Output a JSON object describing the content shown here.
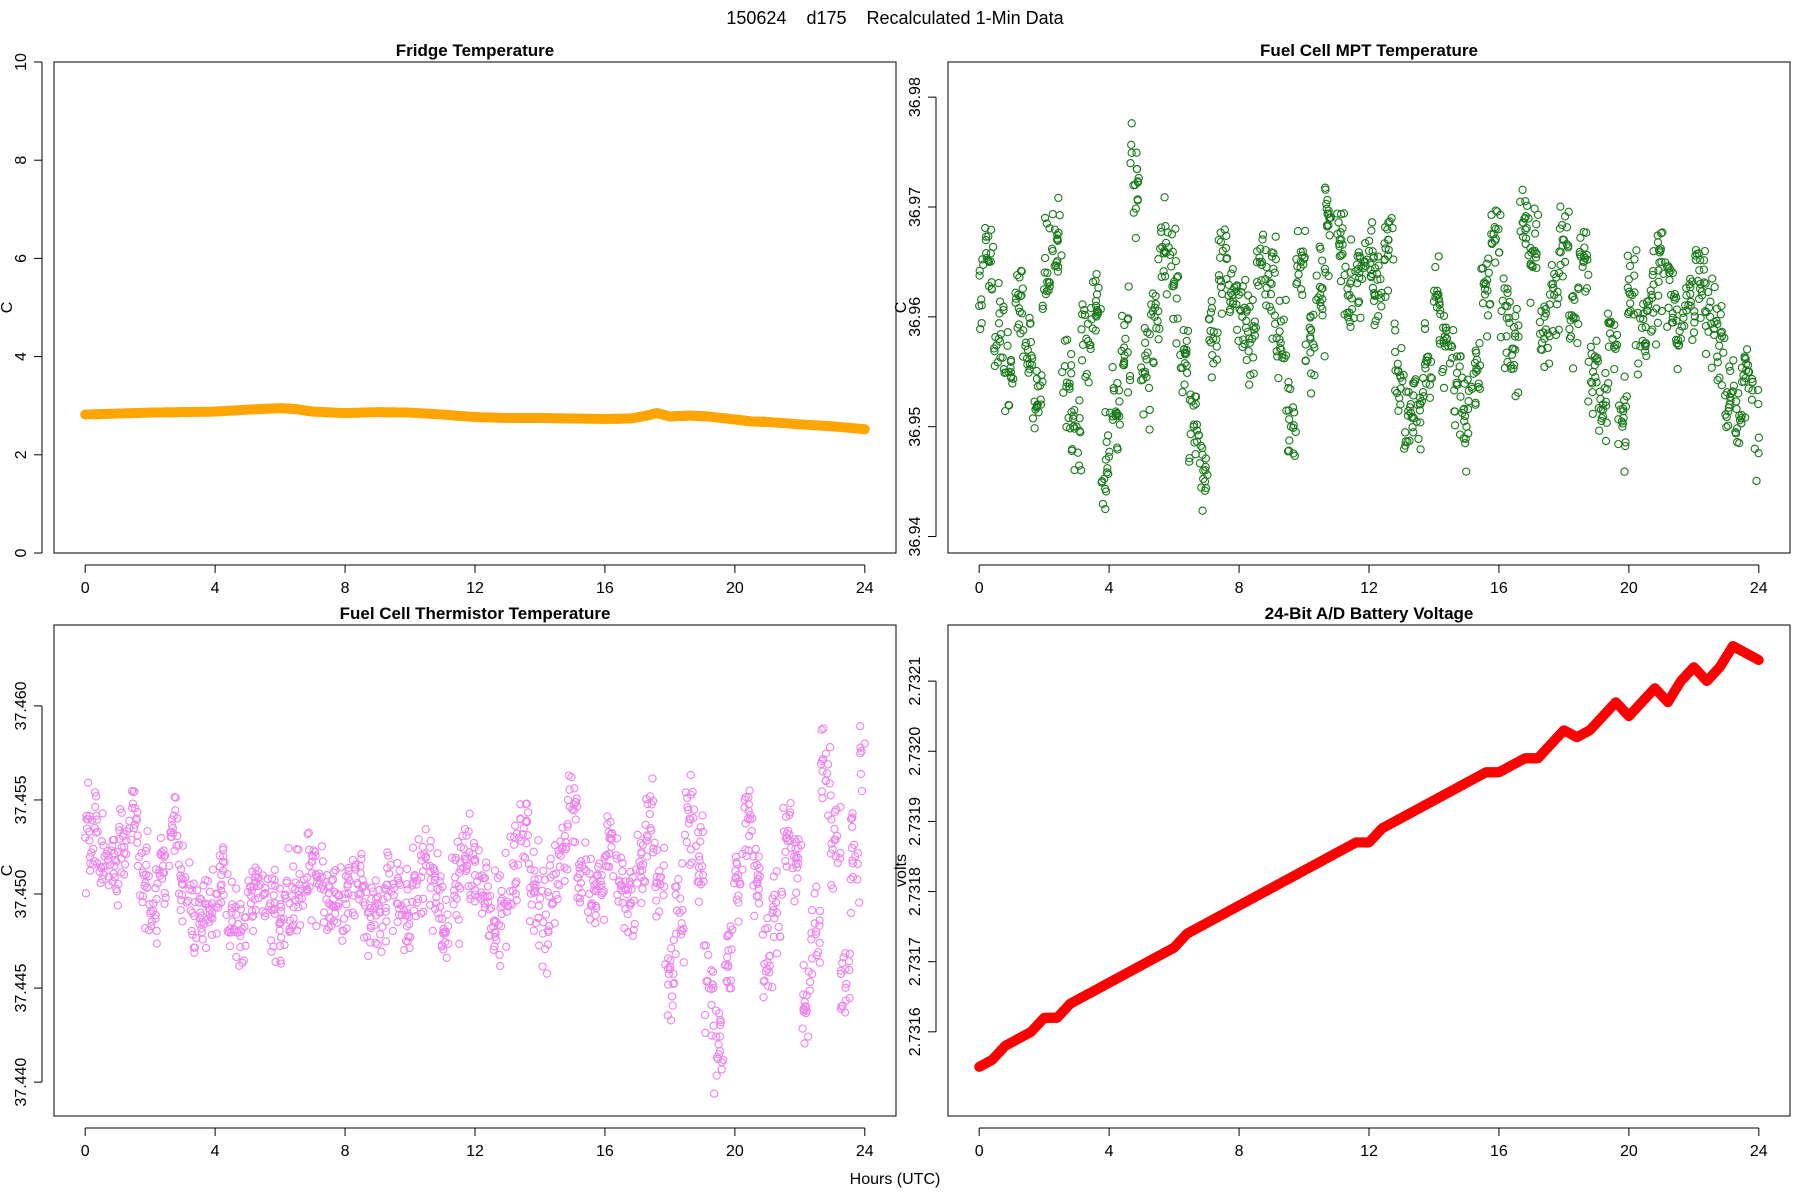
{
  "figure": {
    "title": "150624    d175    Recalculated 1-Min Data",
    "xlabel": "Hours (UTC)"
  },
  "chart_data": [
    {
      "id": "fridge",
      "type": "scatter",
      "title": "Fridge Temperature",
      "xlabel": "",
      "ylabel": "C",
      "xlim": [
        0,
        24
      ],
      "ylim": [
        0,
        10
      ],
      "xticks": [
        0,
        4,
        8,
        12,
        16,
        20,
        24
      ],
      "yticks": [
        0,
        2,
        4,
        6,
        8,
        10
      ],
      "tick_decimals": 0,
      "marker": "dense-line",
      "color": "#FFA500",
      "series": [
        {
          "x": [
            0,
            1,
            2,
            3,
            4,
            5,
            6,
            6.5,
            7,
            8,
            9,
            10,
            11,
            12,
            13,
            14,
            15,
            16,
            16.8,
            17.3,
            17.6,
            18,
            18.6,
            19.2,
            20,
            20.5,
            21,
            22,
            23,
            24
          ],
          "values": [
            2.82,
            2.84,
            2.86,
            2.87,
            2.88,
            2.92,
            2.95,
            2.93,
            2.88,
            2.85,
            2.87,
            2.86,
            2.82,
            2.77,
            2.75,
            2.75,
            2.74,
            2.73,
            2.74,
            2.8,
            2.85,
            2.78,
            2.8,
            2.78,
            2.72,
            2.68,
            2.67,
            2.62,
            2.58,
            2.52
          ]
        }
      ]
    },
    {
      "id": "mpt",
      "type": "scatter",
      "title": "Fuel Cell MPT Temperature",
      "xlabel": "",
      "ylabel": "C",
      "xlim": [
        0,
        24
      ],
      "ylim": [
        36.9385,
        36.9832
      ],
      "xticks": [
        0,
        4,
        8,
        12,
        16,
        20,
        24
      ],
      "yticks": [
        36.94,
        36.95,
        36.96,
        36.97,
        36.98
      ],
      "tick_decimals": 2,
      "marker": "open-circle",
      "color": "#1A7A1A",
      "series": [
        {
          "x": [
            0,
            0.3,
            0.6,
            0.9,
            1.2,
            1.5,
            1.8,
            2.1,
            2.4,
            2.7,
            3,
            3.3,
            3.6,
            3.9,
            4.2,
            4.5,
            4.8,
            5.1,
            5.4,
            5.7,
            6,
            6.3,
            6.6,
            6.9,
            7.2,
            7.5,
            7.8,
            8.1,
            8.4,
            8.7,
            9,
            9.3,
            9.6,
            9.9,
            10.2,
            10.5,
            10.8,
            11.1,
            11.4,
            11.7,
            12,
            12.3,
            12.6,
            12.9,
            13.2,
            13.5,
            13.8,
            14.1,
            14.4,
            14.7,
            15,
            15.3,
            15.6,
            15.9,
            16.2,
            16.5,
            16.8,
            17.1,
            17.4,
            17.7,
            18,
            18.3,
            18.6,
            18.9,
            19.2,
            19.5,
            19.8,
            20.1,
            20.4,
            20.7,
            21,
            21.3,
            21.6,
            21.9,
            22.2,
            22.5,
            22.8,
            23.1,
            23.4,
            23.7,
            24
          ],
          "values": [
            36.961,
            36.965,
            36.958,
            36.955,
            36.962,
            36.957,
            36.952,
            36.964,
            36.967,
            36.954,
            36.95,
            36.958,
            36.961,
            36.947,
            36.951,
            36.958,
            36.972,
            36.955,
            36.96,
            36.966,
            36.963,
            36.957,
            36.95,
            36.946,
            36.958,
            36.966,
            36.962,
            36.96,
            36.958,
            36.965,
            36.963,
            36.957,
            36.95,
            36.965,
            36.958,
            36.962,
            36.969,
            36.967,
            36.962,
            36.964,
            36.966,
            36.962,
            36.967,
            36.955,
            36.951,
            36.952,
            36.956,
            36.962,
            36.958,
            36.954,
            36.95,
            36.955,
            36.963,
            36.968,
            36.961,
            36.957,
            36.969,
            36.966,
            36.958,
            36.962,
            36.967,
            36.96,
            36.965,
            36.955,
            36.952,
            36.958,
            36.95,
            36.962,
            36.959,
            36.962,
            36.965,
            36.962,
            36.958,
            36.961,
            36.963,
            36.96,
            36.958,
            36.952,
            36.951,
            36.955,
            36.949
          ]
        }
      ]
    },
    {
      "id": "thermistor",
      "type": "scatter",
      "title": "Fuel Cell Thermistor Temperature",
      "xlabel": "",
      "ylabel": "C",
      "xlim": [
        0,
        24
      ],
      "ylim": [
        37.4382,
        37.4643
      ],
      "xticks": [
        0,
        4,
        8,
        12,
        16,
        20,
        24
      ],
      "yticks": [
        37.44,
        37.445,
        37.45,
        37.455,
        37.46
      ],
      "tick_decimals": 3,
      "marker": "open-circle",
      "color": "#EE82EE",
      "series": [
        {
          "x": [
            0,
            0.3,
            0.6,
            0.9,
            1.2,
            1.5,
            1.8,
            2.1,
            2.4,
            2.7,
            3,
            3.3,
            3.6,
            3.9,
            4.2,
            4.5,
            4.8,
            5.1,
            5.4,
            5.7,
            6,
            6.3,
            6.6,
            6.9,
            7.2,
            7.5,
            7.8,
            8.1,
            8.4,
            8.7,
            9,
            9.3,
            9.6,
            9.9,
            10.2,
            10.5,
            10.8,
            11.1,
            11.4,
            11.7,
            12,
            12.3,
            12.6,
            12.9,
            13.2,
            13.5,
            13.8,
            14.1,
            14.4,
            14.7,
            15,
            15.3,
            15.6,
            15.9,
            16.2,
            16.5,
            16.8,
            17.1,
            17.4,
            17.7,
            18,
            18.3,
            18.6,
            18.9,
            19.2,
            19.5,
            19.8,
            20.1,
            20.4,
            20.7,
            21,
            21.3,
            21.6,
            21.9,
            22.2,
            22.5,
            22.8,
            23.1,
            23.4,
            23.7,
            24
          ],
          "values": [
            37.453,
            37.4535,
            37.452,
            37.4515,
            37.4525,
            37.4535,
            37.451,
            37.4495,
            37.4515,
            37.4535,
            37.4505,
            37.449,
            37.4485,
            37.4495,
            37.4505,
            37.449,
            37.448,
            37.4495,
            37.4505,
            37.4495,
            37.4485,
            37.4495,
            37.4505,
            37.4515,
            37.4505,
            37.4495,
            37.4495,
            37.45,
            37.4505,
            37.449,
            37.4495,
            37.4505,
            37.4495,
            37.449,
            37.4505,
            37.4515,
            37.4495,
            37.448,
            37.4505,
            37.452,
            37.451,
            37.4495,
            37.4485,
            37.4495,
            37.4515,
            37.4535,
            37.4505,
            37.4485,
            37.4495,
            37.4525,
            37.4545,
            37.4515,
            37.4495,
            37.451,
            37.4525,
            37.4505,
            37.4495,
            37.4515,
            37.4535,
            37.4505,
            37.446,
            37.449,
            37.454,
            37.452,
            37.445,
            37.442,
            37.447,
            37.451,
            37.454,
            37.451,
            37.446,
            37.449,
            37.453,
            37.452,
            37.444,
            37.448,
            37.456,
            37.452,
            37.446,
            37.452,
            37.458
          ]
        }
      ]
    },
    {
      "id": "battery",
      "type": "scatter",
      "title": "24-Bit A/D Battery Voltage",
      "xlabel": "",
      "ylabel": "volts",
      "xlim": [
        0,
        24
      ],
      "ylim": [
        2.73148,
        2.73218
      ],
      "xticks": [
        0,
        4,
        8,
        12,
        16,
        20,
        24
      ],
      "yticks": [
        2.7316,
        2.7317,
        2.7318,
        2.7319,
        2.732,
        2.7321
      ],
      "tick_decimals": 4,
      "marker": "dense-line",
      "color": "#FF0000",
      "series": [
        {
          "x": [
            0,
            0.4,
            0.8,
            1.2,
            1.6,
            2,
            2.4,
            2.8,
            3.2,
            3.6,
            4,
            4.4,
            4.8,
            5.2,
            5.6,
            6,
            6.4,
            6.8,
            7.2,
            7.6,
            8,
            8.4,
            8.8,
            9.2,
            9.6,
            10,
            10.4,
            10.8,
            11.2,
            11.6,
            12,
            12.4,
            12.8,
            13.2,
            13.6,
            14,
            14.4,
            14.8,
            15.2,
            15.6,
            16,
            16.4,
            16.8,
            17.2,
            17.6,
            18,
            18.4,
            18.8,
            19.2,
            19.6,
            20,
            20.4,
            20.8,
            21.2,
            21.6,
            22,
            22.4,
            22.8,
            23.2,
            23.6,
            24
          ],
          "values": [
            2.73155,
            2.73156,
            2.73158,
            2.73159,
            2.7316,
            2.73162,
            2.73162,
            2.73164,
            2.73165,
            2.73166,
            2.73167,
            2.73168,
            2.73169,
            2.7317,
            2.73171,
            2.73172,
            2.73174,
            2.73175,
            2.73176,
            2.73177,
            2.73178,
            2.73179,
            2.7318,
            2.73181,
            2.73182,
            2.73183,
            2.73184,
            2.73185,
            2.73186,
            2.73187,
            2.73187,
            2.73189,
            2.7319,
            2.73191,
            2.73192,
            2.73193,
            2.73194,
            2.73195,
            2.73196,
            2.73197,
            2.73197,
            2.73198,
            2.73199,
            2.73199,
            2.73201,
            2.73203,
            2.73202,
            2.73203,
            2.73205,
            2.73207,
            2.73205,
            2.73207,
            2.73209,
            2.73207,
            2.7321,
            2.73212,
            2.7321,
            2.73212,
            2.73215,
            2.73214,
            2.73213
          ]
        }
      ]
    }
  ]
}
